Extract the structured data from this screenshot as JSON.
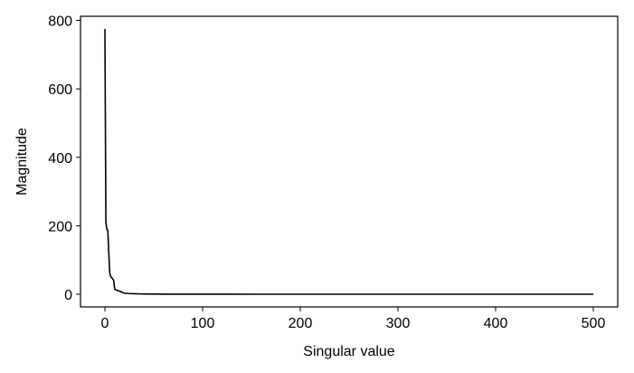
{
  "chart_data": {
    "type": "line",
    "title": "",
    "xlabel": "Singular value",
    "ylabel": "Magnitude",
    "xlim": [
      -25,
      525
    ],
    "ylim": [
      -37,
      812
    ],
    "xticks": [
      0,
      100,
      200,
      300,
      400,
      500
    ],
    "yticks": [
      0,
      200,
      400,
      600,
      800
    ],
    "grid": false,
    "legend": "none",
    "line_color": "#000000",
    "series": [
      {
        "x": [
          0,
          1,
          2,
          3,
          4,
          5,
          6,
          7,
          8,
          9,
          10,
          12,
          14,
          16,
          18,
          20,
          25,
          30,
          35,
          40,
          50,
          60,
          80,
          100,
          150,
          200,
          250,
          300,
          350,
          400,
          450,
          500
        ],
        "y": [
          775,
          210,
          190,
          185,
          120,
          60,
          52,
          48,
          45,
          40,
          15,
          12,
          10,
          8,
          5,
          3,
          2,
          1.5,
          1,
          0.8,
          0.5,
          0.3,
          0.2,
          0.1,
          0.05,
          0.03,
          0.02,
          0.01,
          0.01,
          0.01,
          0.01,
          0.01
        ]
      }
    ]
  }
}
